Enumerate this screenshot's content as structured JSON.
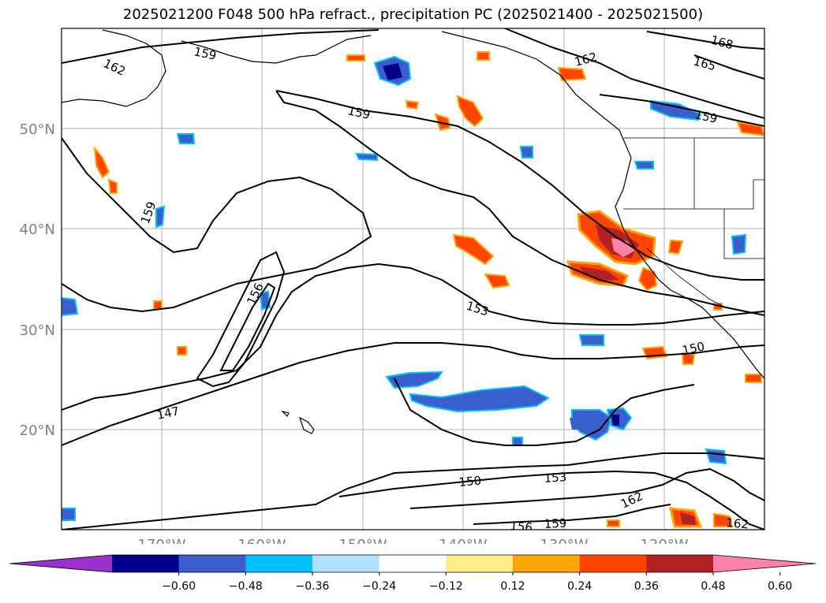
{
  "title": "2025021200 F048 500 hPa refract., precipitation PC (2025021400 - 2025021500)",
  "map": {
    "lon_range": [
      -180,
      -110
    ],
    "lat_range": [
      10,
      60
    ],
    "lat_tick_labels": [
      "50°N",
      "40°N",
      "30°N",
      "20°N"
    ],
    "lon_tick_labels": [
      "170°W",
      "160°W",
      "150°W",
      "140°W",
      "130°W",
      "120°W"
    ],
    "grid": true,
    "contour_labels": [
      "162",
      "159",
      "159",
      "162",
      "168",
      "165",
      "159",
      "159",
      "156",
      "153",
      "150",
      "147",
      "150",
      "153",
      "162",
      "156",
      "159",
      "162"
    ]
  },
  "colorbar": {
    "tick_labels": [
      "−0.60",
      "−0.48",
      "−0.36",
      "−0.24",
      "−0.12",
      "0.12",
      "0.24",
      "0.36",
      "0.48",
      "0.60"
    ],
    "colors": [
      "#9932cc",
      "#00008b",
      "#3a5fcd",
      "#00bfff",
      "#b0e2ff",
      "#ffffff",
      "#ffec8b",
      "#ffa500",
      "#ff4500",
      "#b22222",
      "#ff82ab"
    ]
  }
}
